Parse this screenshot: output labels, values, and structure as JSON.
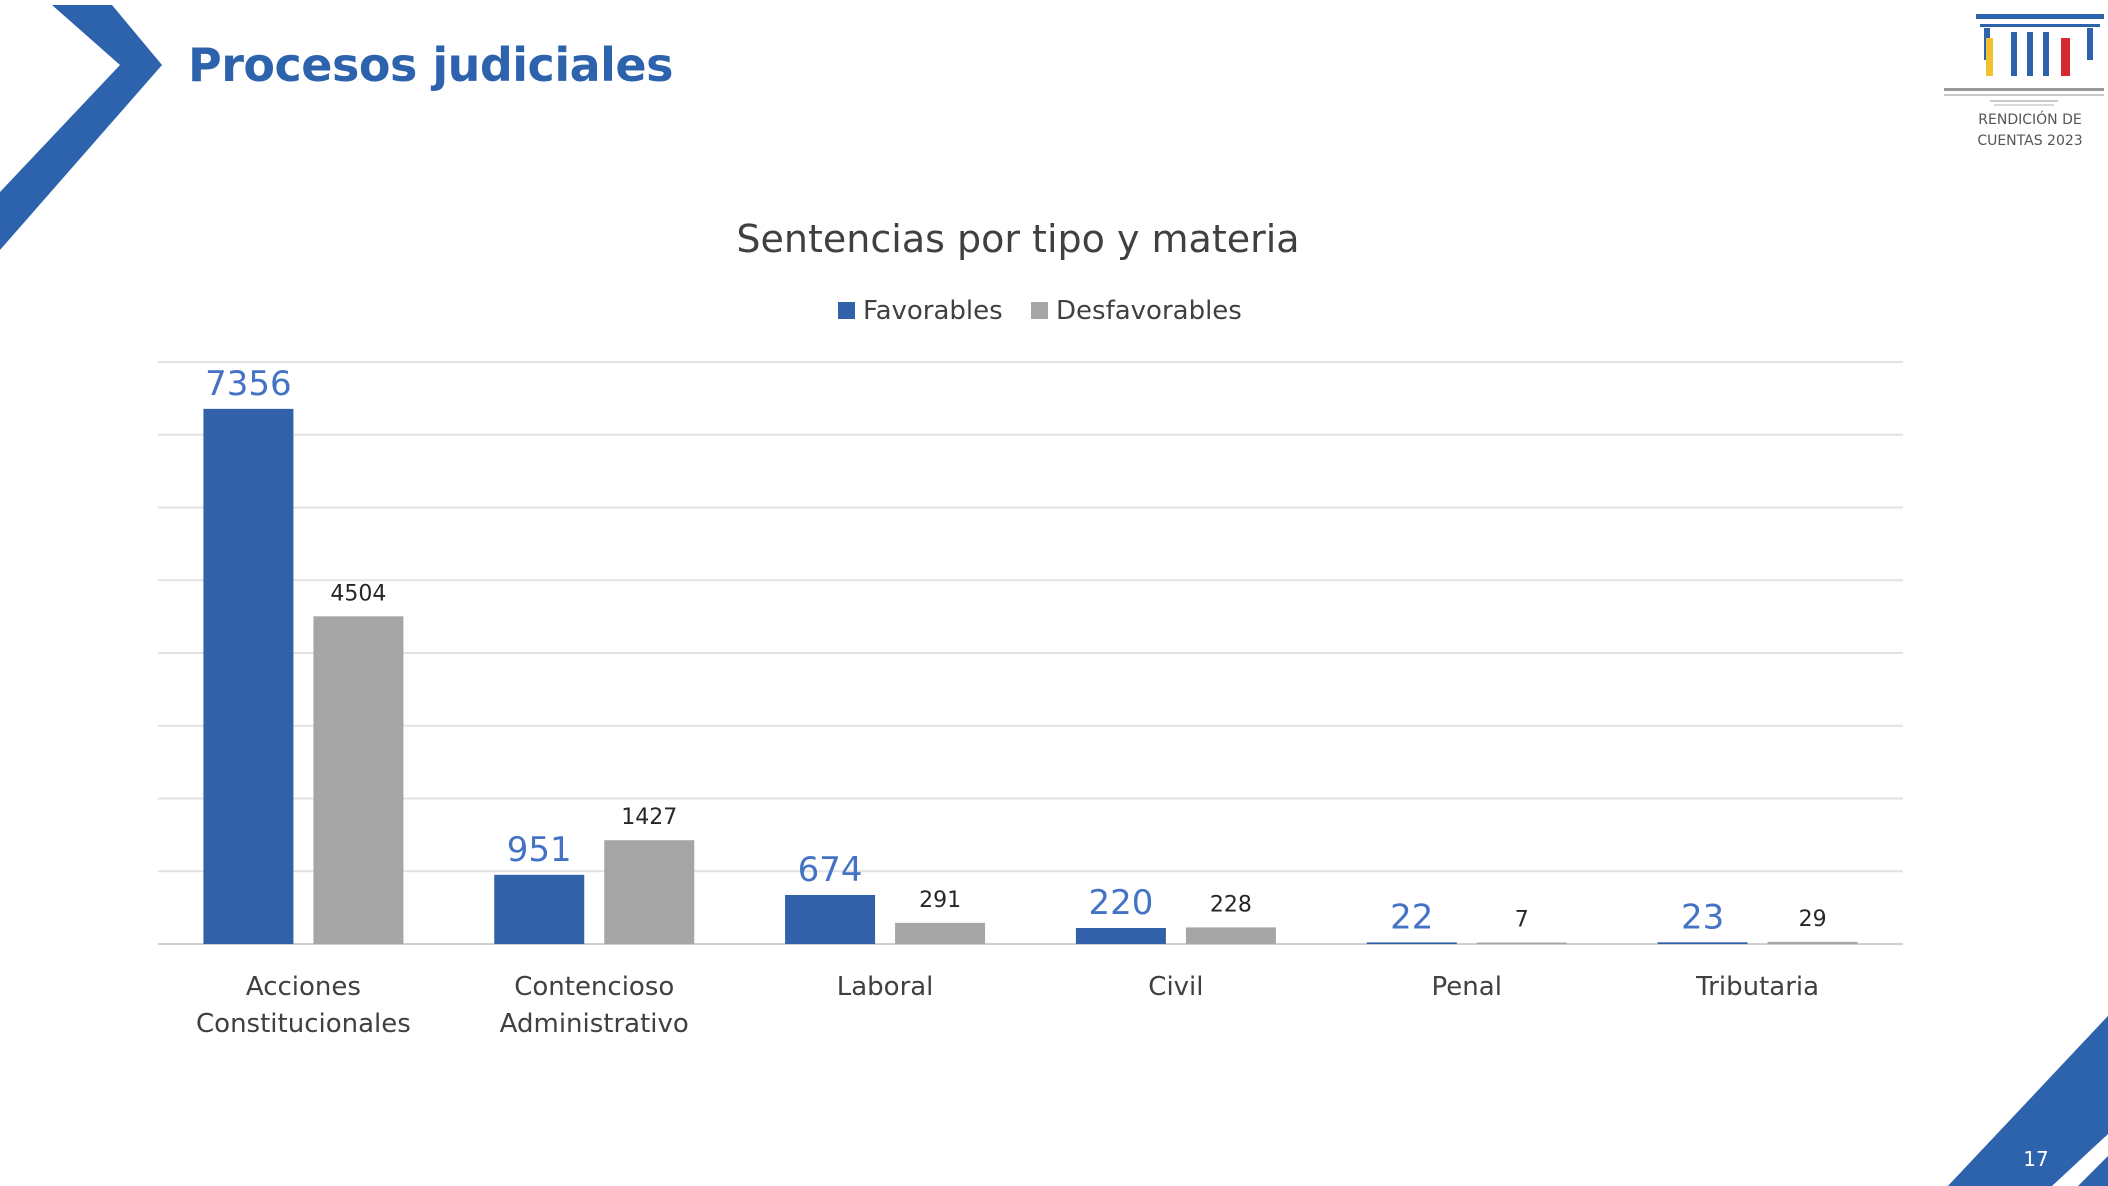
{
  "header": {
    "title": "Procesos judiciales",
    "logo_line1": "RENDICIÓN DE",
    "logo_line2": "CUENTAS 2023",
    "logo_icon": "columns-logo-icon"
  },
  "footer": {
    "page_number": "17"
  },
  "colors": {
    "brand_blue": "#2d62ad",
    "favorable": "#3061a9",
    "desfavorable": "#a5a5a5",
    "logo_yellow": "#f2c12e",
    "logo_red": "#d7282f"
  },
  "chart_data": {
    "type": "bar",
    "title": "Sentencias por tipo y materia",
    "categories": [
      [
        "Acciones",
        "Constitucionales"
      ],
      [
        "Contencioso",
        "Administrativo"
      ],
      [
        "Laboral"
      ],
      [
        "Civil"
      ],
      [
        "Penal"
      ],
      [
        "Tributaria"
      ]
    ],
    "series": [
      {
        "name": "Favorables",
        "values": [
          7356,
          951,
          674,
          220,
          22,
          23
        ],
        "color": "#3061a9"
      },
      {
        "name": "Desfavorables",
        "values": [
          4504,
          1427,
          291,
          228,
          7,
          29
        ],
        "color": "#a5a5a5"
      }
    ],
    "ylim": [
      0,
      8000
    ],
    "grid": true,
    "legend": "top-center"
  }
}
